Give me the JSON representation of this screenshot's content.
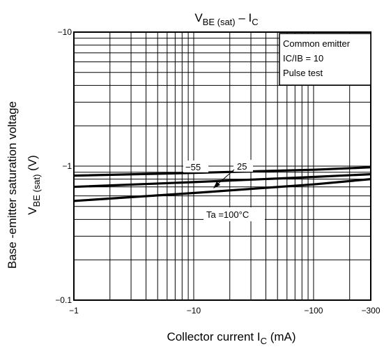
{
  "chart_data": {
    "type": "line",
    "title": {
      "main": "V",
      "main_sub": "BE (sat)",
      "sep": " – ",
      "tail": "I",
      "tail_sub": "C"
    },
    "xlabel": {
      "main": "Collector current   I",
      "sub": "C",
      "unit": "   (mA)"
    },
    "ylabel": {
      "line1": "Base -emitter saturation voltage",
      "main": "V",
      "sub": "BE (sat)",
      "unit": "    (V)"
    },
    "x_scale": "log",
    "y_scale": "log",
    "xlim": [
      1,
      300
    ],
    "ylim": [
      0.1,
      10
    ],
    "grid": true,
    "x_ticks": [
      {
        "value": 1,
        "label": "−1"
      },
      {
        "value": 10,
        "label": "−10"
      },
      {
        "value": 100,
        "label": "−100"
      },
      {
        "value": 300,
        "label": "−300"
      }
    ],
    "y_ticks": [
      {
        "value": 0.1,
        "label": "−0.1"
      },
      {
        "value": 1,
        "label": "−1"
      },
      {
        "value": 10,
        "label": "−10"
      }
    ],
    "notes": [
      "Common emitter",
      "IC/IB = 10",
      "Pulse test"
    ],
    "series": [
      {
        "name": "−55",
        "x": [
          1,
          10,
          100,
          300
        ],
        "y": [
          0.85,
          0.89,
          0.94,
          0.98
        ]
      },
      {
        "name": "25",
        "x": [
          1,
          10,
          100,
          300
        ],
        "y": [
          0.7,
          0.76,
          0.83,
          0.87
        ]
      },
      {
        "name": "Ta =100°C",
        "x": [
          1,
          10,
          100,
          300
        ],
        "y": [
          0.55,
          0.63,
          0.73,
          0.8
        ]
      }
    ]
  }
}
